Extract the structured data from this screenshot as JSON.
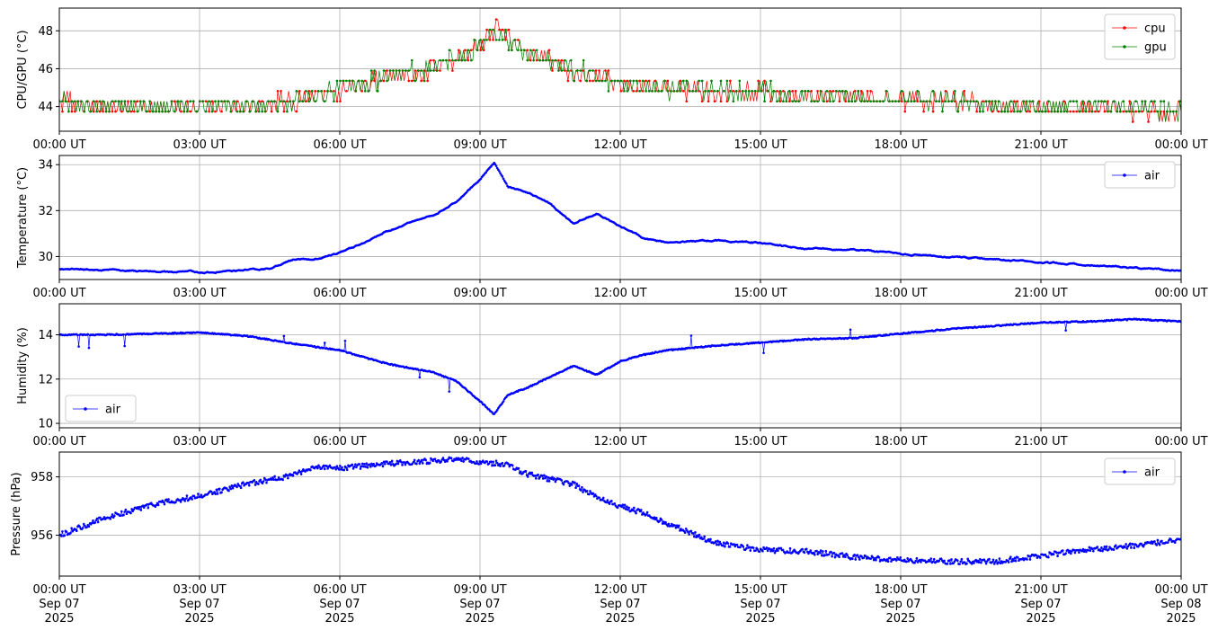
{
  "chart_data": [
    {
      "type": "line",
      "ylabel": "CPU/GPU (°C)",
      "xlabel": "",
      "x_range": [
        "2025-09-07T00:00Z",
        "2025-09-08T00:00Z"
      ],
      "ylim": [
        42.7,
        49.2
      ],
      "yticks": [
        44,
        46,
        48
      ],
      "xtick_labels": [
        "00:00 UT",
        "03:00 UT",
        "06:00 UT",
        "09:00 UT",
        "12:00 UT",
        "15:00 UT",
        "18:00 UT",
        "21:00 UT",
        "00:00 UT"
      ],
      "grid": true,
      "legend_position": "upper right",
      "series": [
        {
          "name": "cpu",
          "color": "#ff0000",
          "noise": "quantized",
          "quantum": 0.54,
          "x": [
            0,
            1,
            2,
            3,
            4,
            5,
            5.5,
            6,
            6.5,
            7,
            7.5,
            8,
            8.5,
            9,
            9.3,
            9.6,
            10,
            10.5,
            11,
            11.5,
            12,
            12.5,
            13,
            14,
            15,
            16,
            17,
            18,
            19,
            20,
            21,
            22,
            23,
            24
          ],
          "values": [
            44.3,
            44.0,
            43.9,
            44.0,
            44.1,
            44.3,
            44.6,
            44.9,
            45.2,
            45.6,
            45.8,
            46.1,
            46.5,
            47.4,
            48.1,
            47.5,
            46.8,
            46.3,
            45.9,
            45.6,
            45.3,
            45.1,
            44.9,
            44.8,
            44.8,
            44.6,
            44.5,
            44.4,
            44.3,
            44.1,
            44.0,
            43.9,
            43.8,
            43.7
          ]
        },
        {
          "name": "gpu",
          "color": "#008000",
          "noise": "quantized",
          "quantum": 0.54,
          "x": [
            0,
            1,
            2,
            3,
            4,
            5,
            5.5,
            6,
            6.5,
            7,
            7.5,
            8,
            8.5,
            9,
            9.3,
            9.6,
            10,
            10.5,
            11,
            11.5,
            12,
            12.5,
            13,
            14,
            15,
            16,
            17,
            18,
            19,
            20,
            21,
            22,
            23,
            24
          ],
          "values": [
            44.2,
            44.0,
            43.9,
            44.0,
            44.1,
            44.2,
            44.6,
            44.9,
            45.2,
            45.6,
            45.8,
            46.1,
            46.5,
            47.3,
            47.9,
            47.4,
            46.8,
            46.3,
            45.9,
            45.6,
            45.3,
            45.1,
            44.9,
            44.9,
            44.8,
            44.6,
            44.5,
            44.4,
            44.3,
            44.1,
            44.0,
            44.0,
            43.9,
            43.8
          ]
        }
      ]
    },
    {
      "type": "line",
      "ylabel": "Temperature (°C)",
      "xlabel": "",
      "x_range": [
        "2025-09-07T00:00Z",
        "2025-09-08T00:00Z"
      ],
      "ylim": [
        29.0,
        34.4
      ],
      "yticks": [
        30,
        32,
        34
      ],
      "xtick_labels": [
        "00:00 UT",
        "03:00 UT",
        "06:00 UT",
        "09:00 UT",
        "12:00 UT",
        "15:00 UT",
        "18:00 UT",
        "21:00 UT",
        "00:00 UT"
      ],
      "grid": true,
      "legend_position": "upper right",
      "series": [
        {
          "name": "air",
          "color": "#0000ff",
          "noise": "smooth",
          "amp": 0.04,
          "x": [
            0,
            1,
            2,
            2.5,
            2.8,
            3,
            4,
            4.5,
            5,
            5.5,
            6,
            6.5,
            7,
            7.5,
            8,
            8.5,
            9,
            9.3,
            9.6,
            10,
            10.5,
            11,
            11.5,
            12,
            12.5,
            13,
            14,
            15,
            16,
            17,
            18,
            19,
            20,
            21,
            22,
            23,
            24
          ],
          "values": [
            29.45,
            29.42,
            29.35,
            29.3,
            29.38,
            29.3,
            29.42,
            29.5,
            29.85,
            29.9,
            30.15,
            30.6,
            31.1,
            31.5,
            31.8,
            32.4,
            33.4,
            34.1,
            33.0,
            32.8,
            32.3,
            31.4,
            31.9,
            31.3,
            30.8,
            30.6,
            30.7,
            30.6,
            30.35,
            30.3,
            30.1,
            30.0,
            29.9,
            29.75,
            29.65,
            29.5,
            29.42
          ]
        }
      ]
    },
    {
      "type": "line",
      "ylabel": "Humidity (%)",
      "xlabel": "",
      "x_range": [
        "2025-09-07T00:00Z",
        "2025-09-08T00:00Z"
      ],
      "ylim": [
        9.8,
        15.4
      ],
      "yticks": [
        10,
        12,
        14
      ],
      "xtick_labels": [
        "00:00 UT",
        "03:00 UT",
        "06:00 UT",
        "09:00 UT",
        "12:00 UT",
        "15:00 UT",
        "18:00 UT",
        "21:00 UT",
        "00:00 UT"
      ],
      "grid": true,
      "legend_position": "lower left",
      "series": [
        {
          "name": "air",
          "color": "#0000ff",
          "noise": "spiky",
          "amp": 0.05,
          "x": [
            0,
            1,
            2,
            3,
            4,
            5,
            6,
            7,
            8,
            8.5,
            9,
            9.3,
            9.6,
            10,
            10.5,
            11,
            11.5,
            12,
            12.5,
            13,
            14,
            15,
            16,
            17,
            18,
            19,
            20,
            21,
            22,
            23,
            24
          ],
          "values": [
            14.0,
            14.0,
            14.05,
            14.1,
            13.95,
            13.6,
            13.3,
            12.7,
            12.3,
            11.9,
            11.0,
            10.4,
            11.3,
            11.6,
            12.1,
            12.6,
            12.2,
            12.8,
            13.1,
            13.3,
            13.5,
            13.65,
            13.8,
            13.85,
            14.05,
            14.25,
            14.4,
            14.55,
            14.6,
            14.7,
            14.6
          ]
        }
      ]
    },
    {
      "type": "line",
      "ylabel": "Pressure (hPa)",
      "xlabel": "",
      "x_range": [
        "2025-09-07T00:00Z",
        "2025-09-08T00:00Z"
      ],
      "ylim": [
        954.6,
        958.85
      ],
      "yticks": [
        956,
        958
      ],
      "xtick_labels": [
        "00:00 UT\nSep 07\n2025",
        "03:00 UT\nSep 07\n2025",
        "06:00 UT\nSep 07\n2025",
        "09:00 UT\nSep 07\n2025",
        "12:00 UT\nSep 07\n2025",
        "15:00 UT\nSep 07\n2025",
        "18:00 UT\nSep 07\n2025",
        "21:00 UT\nSep 07\n2025",
        "00:00 UT\nSep 08\n2025"
      ],
      "grid": true,
      "legend_position": "upper right",
      "series": [
        {
          "name": "air",
          "color": "#0000ff",
          "noise": "scatter",
          "amp": 0.09,
          "x": [
            0,
            1,
            2,
            3,
            4,
            5,
            5.5,
            6,
            7,
            8,
            8.5,
            9,
            9.5,
            10,
            11,
            11.5,
            12,
            12.5,
            13,
            13.5,
            14,
            15,
            16,
            17,
            18,
            19,
            20,
            21,
            22,
            23,
            24
          ],
          "values": [
            956.0,
            956.6,
            957.05,
            957.35,
            957.75,
            958.05,
            958.35,
            958.3,
            958.45,
            958.55,
            958.6,
            958.5,
            958.45,
            958.1,
            957.75,
            957.3,
            957.0,
            956.75,
            956.4,
            956.1,
            955.75,
            955.5,
            955.45,
            955.25,
            955.15,
            955.1,
            955.1,
            955.3,
            955.5,
            955.65,
            955.85
          ]
        }
      ]
    }
  ]
}
